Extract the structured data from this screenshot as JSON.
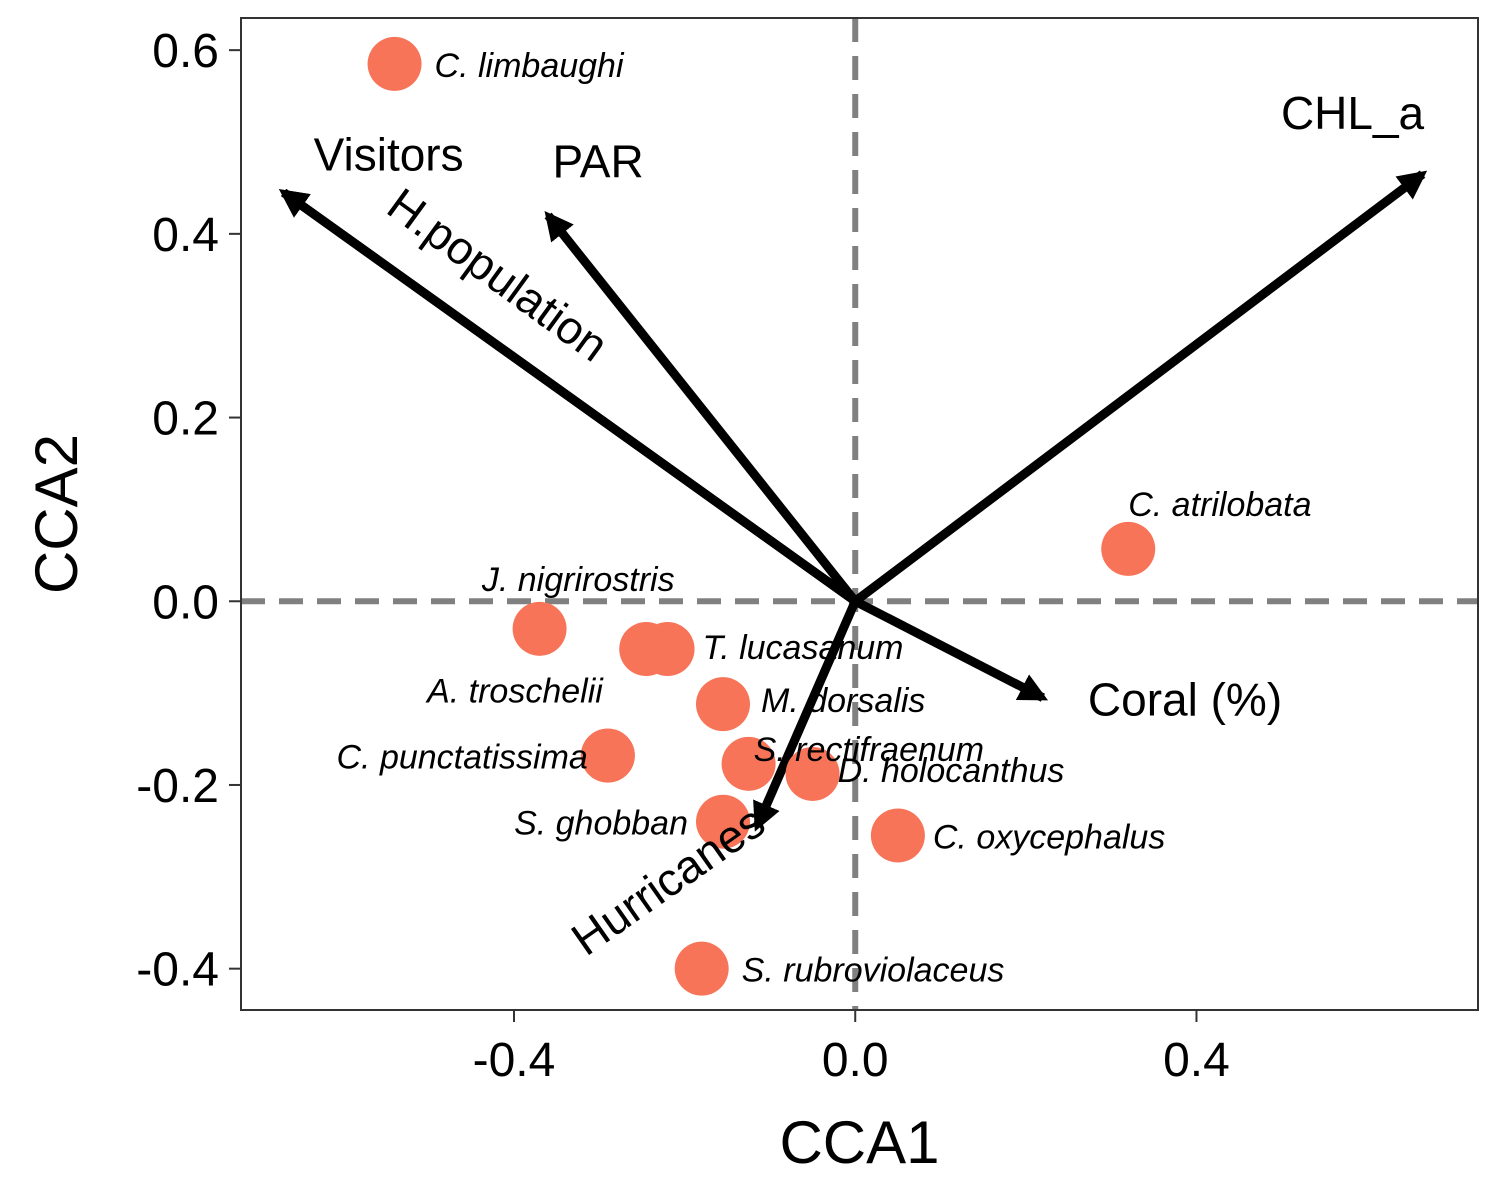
{
  "chart_data": {
    "type": "scatter",
    "xlabel": "CCA1",
    "ylabel": "CCA2",
    "xlim": [
      -0.72,
      0.73
    ],
    "ylim": [
      -0.445,
      0.635
    ],
    "x_ticks": [
      -0.4,
      0.0,
      0.4
    ],
    "x_tick_labels": [
      "-0.4",
      "0.0",
      "0.4"
    ],
    "y_ticks": [
      -0.4,
      -0.2,
      0.0,
      0.2,
      0.4,
      0.6
    ],
    "y_tick_labels": [
      "-0.4",
      "-0.2",
      "0.0",
      "0.2",
      "0.4",
      "0.6"
    ],
    "grid": false,
    "reference_lines": "dashed lines at x = 0 and y = 0",
    "point_color": "#f87459",
    "arrow_color": "#000000",
    "species": [
      {
        "label": "C. limbaughi",
        "x": -0.54,
        "y": 0.585
      },
      {
        "label": "C. atrilobata",
        "x": 0.32,
        "y": 0.057
      },
      {
        "label": "J. nigrirostris",
        "x": -0.37,
        "y": -0.03
      },
      {
        "label": "",
        "x": -0.245,
        "y": -0.052
      },
      {
        "label": "T. lucasanum",
        "x": -0.22,
        "y": -0.052
      },
      {
        "label": "M. dorsalis",
        "x": -0.155,
        "y": -0.112
      },
      {
        "label": "A. troschelii",
        "x": -0.29,
        "y": -0.168
      },
      {
        "label": "C. punctatissima",
        "x": -0.29,
        "y": -0.168
      },
      {
        "label": "S. rectifraenum",
        "x": -0.125,
        "y": -0.177
      },
      {
        "label": "D. holocanthus",
        "x": -0.05,
        "y": -0.188
      },
      {
        "label": "S. ghobban",
        "x": -0.155,
        "y": -0.24
      },
      {
        "label": "C. oxycephalus",
        "x": 0.05,
        "y": -0.255
      },
      {
        "label": "S. rubroviolaceus",
        "x": -0.18,
        "y": -0.4
      }
    ],
    "env_vectors": [
      {
        "label": "Visitors",
        "x": -0.67,
        "y": 0.445
      },
      {
        "label": "H.population",
        "x": -0.67,
        "y": 0.445
      },
      {
        "label": "PAR",
        "x": -0.36,
        "y": 0.42
      },
      {
        "label": "CHL_a",
        "x": 0.665,
        "y": 0.465
      },
      {
        "label": "Coral (%)",
        "x": 0.22,
        "y": -0.105
      },
      {
        "label": "Hurricanes",
        "x": -0.115,
        "y": -0.245
      }
    ]
  }
}
